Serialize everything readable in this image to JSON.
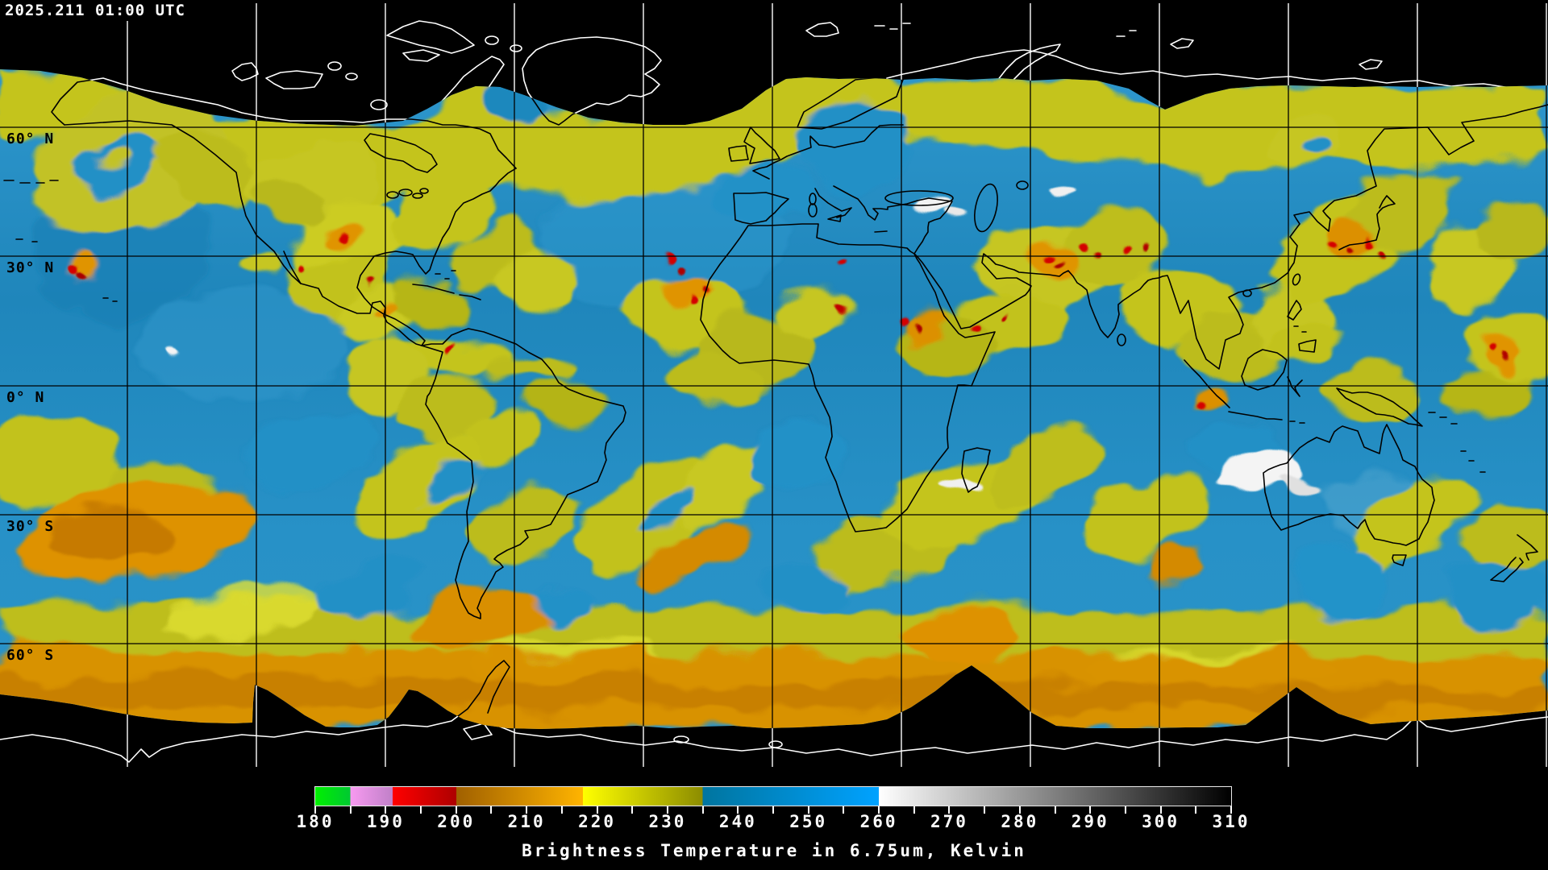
{
  "header": {
    "timestamp": "2025.211 01:00 UTC"
  },
  "map": {
    "latitude_labels": [
      {
        "label": "60° N"
      },
      {
        "label": "30° N"
      },
      {
        "label": "0° N"
      },
      {
        "label": "30° S"
      },
      {
        "label": "60° S"
      }
    ],
    "colors": {
      "dry_air_blue": "#2290c6",
      "moist_cloud_yellow": "#c4c41e",
      "cold_cloud_orange": "#d98f00",
      "coldest_cloud_red": "#d40000",
      "warm_surface_white": "#f0f0f0",
      "no_data_black": "#000000",
      "coastline_over_data": "#000000",
      "coastline_over_no_data": "#ffffff",
      "gridline_over_data": "#000000",
      "gridline_over_no_data": "#ffffff"
    }
  },
  "colorbar": {
    "title": "Brightness Temperature in 6.75um, Kelvin",
    "unit": "Kelvin",
    "wavelength": "6.75um",
    "min": 180,
    "max": 310,
    "minor_tick_step": 5,
    "major_tick_step": 10,
    "major_tick_labels": [
      "180",
      "190",
      "200",
      "210",
      "220",
      "230",
      "240",
      "250",
      "260",
      "270",
      "280",
      "290",
      "300",
      "310"
    ],
    "segments": [
      {
        "from": 180,
        "to": 185,
        "start_color": "#00f000",
        "end_color": "#00c832"
      },
      {
        "from": 185,
        "to": 191,
        "start_color": "#f79af0",
        "end_color": "#c080c8"
      },
      {
        "from": 191,
        "to": 200,
        "start_color": "#ff0000",
        "end_color": "#ae0000"
      },
      {
        "from": 200,
        "to": 218,
        "start_color": "#a06000",
        "end_color": "#ffb400"
      },
      {
        "from": 218,
        "to": 235,
        "start_color": "#ffff00",
        "end_color": "#8c8c00"
      },
      {
        "from": 235,
        "to": 260,
        "start_color": "#00759f",
        "end_color": "#00a2ff"
      },
      {
        "from": 260,
        "to": 310,
        "start_color": "#ffffff",
        "end_color": "#000000"
      }
    ]
  }
}
